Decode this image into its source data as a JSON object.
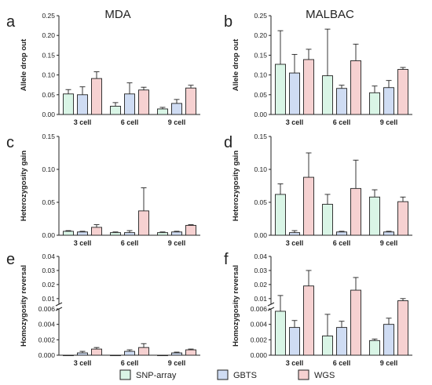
{
  "figure": {
    "legend": [
      {
        "name": "SNP-array",
        "fill": "#d9f5e6",
        "stroke": "#1f1f1f"
      },
      {
        "name": "GBTS",
        "fill": "#cfdcf3",
        "stroke": "#1f1f1f"
      },
      {
        "name": "WGS",
        "fill": "#f6d1d1",
        "stroke": "#1f1f1f"
      }
    ],
    "colors": {
      "axis": "#222222"
    }
  },
  "chart_data": [
    {
      "letter": "a",
      "title": "MDA",
      "type": "bar",
      "ylabel": "Allele drop out",
      "ylim": [
        0,
        0.25
      ],
      "yticks": [
        {
          "v": 0,
          "t": "0.00"
        },
        {
          "v": 0.05,
          "t": "0.05"
        },
        {
          "v": 0.1,
          "t": "0.10"
        },
        {
          "v": 0.15,
          "t": "0.15"
        },
        {
          "v": 0.2,
          "t": "0.20"
        },
        {
          "v": 0.25,
          "t": "0.25"
        }
      ],
      "categories": [
        "3 cell",
        "6 cell",
        "9 cell"
      ],
      "series": [
        {
          "name": "SNP-array",
          "fill": "#d9f5e6",
          "values": [
            0.052,
            0.021,
            0.014
          ],
          "err": [
            0.011,
            0.009,
            0.004
          ]
        },
        {
          "name": "GBTS",
          "fill": "#cfdcf3",
          "values": [
            0.05,
            0.052,
            0.028
          ],
          "err": [
            0.02,
            0.028,
            0.01
          ]
        },
        {
          "name": "WGS",
          "fill": "#f6d1d1",
          "values": [
            0.091,
            0.062,
            0.067
          ],
          "err": [
            0.017,
            0.007,
            0.007
          ]
        }
      ]
    },
    {
      "letter": "b",
      "title": "MALBAC",
      "type": "bar",
      "ylabel": "Allele drop out",
      "ylim": [
        0,
        0.25
      ],
      "yticks": [
        {
          "v": 0,
          "t": "0.00"
        },
        {
          "v": 0.05,
          "t": "0.05"
        },
        {
          "v": 0.1,
          "t": "0.10"
        },
        {
          "v": 0.15,
          "t": "0.15"
        },
        {
          "v": 0.2,
          "t": "0.20"
        },
        {
          "v": 0.25,
          "t": "0.25"
        }
      ],
      "categories": [
        "3 cell",
        "6 cell",
        "9 cell"
      ],
      "series": [
        {
          "name": "SNP-array",
          "fill": "#d9f5e6",
          "values": [
            0.127,
            0.098,
            0.055
          ],
          "err": [
            0.085,
            0.118,
            0.017
          ]
        },
        {
          "name": "GBTS",
          "fill": "#cfdcf3",
          "values": [
            0.105,
            0.066,
            0.068
          ],
          "err": [
            0.047,
            0.008,
            0.018
          ]
        },
        {
          "name": "WGS",
          "fill": "#f6d1d1",
          "values": [
            0.139,
            0.136,
            0.114
          ],
          "err": [
            0.026,
            0.042,
            0.005
          ]
        }
      ]
    },
    {
      "letter": "c",
      "title": "",
      "type": "bar",
      "ylabel": "Heterozygosity gain",
      "ylim": [
        0,
        0.15
      ],
      "yticks": [
        {
          "v": 0,
          "t": "0.00"
        },
        {
          "v": 0.05,
          "t": "0.05"
        },
        {
          "v": 0.1,
          "t": "0.10"
        },
        {
          "v": 0.15,
          "t": "0.15"
        }
      ],
      "categories": [
        "3 cell",
        "6 cell",
        "9 cell"
      ],
      "series": [
        {
          "name": "SNP-array",
          "fill": "#d9f5e6",
          "values": [
            0.006,
            0.004,
            0.004
          ],
          "err": [
            0.001,
            0.001,
            0.001
          ]
        },
        {
          "name": "GBTS",
          "fill": "#cfdcf3",
          "values": [
            0.005,
            0.004,
            0.005
          ],
          "err": [
            0.001,
            0.003,
            0.001
          ]
        },
        {
          "name": "WGS",
          "fill": "#f6d1d1",
          "values": [
            0.012,
            0.037,
            0.015
          ],
          "err": [
            0.004,
            0.035,
            0.001
          ]
        }
      ]
    },
    {
      "letter": "d",
      "title": "",
      "type": "bar",
      "ylabel": "Heterozygosity gain",
      "ylim": [
        0,
        0.15
      ],
      "yticks": [
        {
          "v": 0,
          "t": "0.00"
        },
        {
          "v": 0.05,
          "t": "0.05"
        },
        {
          "v": 0.1,
          "t": "0.10"
        },
        {
          "v": 0.15,
          "t": "0.15"
        }
      ],
      "categories": [
        "3 cell",
        "6 cell",
        "9 cell"
      ],
      "series": [
        {
          "name": "SNP-array",
          "fill": "#d9f5e6",
          "values": [
            0.062,
            0.047,
            0.058
          ],
          "err": [
            0.016,
            0.015,
            0.011
          ]
        },
        {
          "name": "GBTS",
          "fill": "#cfdcf3",
          "values": [
            0.004,
            0.005,
            0.005
          ],
          "err": [
            0.003,
            0.001,
            0.001
          ]
        },
        {
          "name": "WGS",
          "fill": "#f6d1d1",
          "values": [
            0.088,
            0.071,
            0.051
          ],
          "err": [
            0.037,
            0.043,
            0.007
          ]
        }
      ]
    },
    {
      "letter": "e",
      "title": "",
      "type": "bar",
      "ylabel": "Homozygosity reversal",
      "broken_axis": {
        "lower_range": [
          0,
          0.006
        ],
        "upper_range": [
          0.006,
          0.04
        ]
      },
      "yticks_lower": [
        {
          "v": 0,
          "t": "0.000"
        },
        {
          "v": 0.002,
          "t": "0.002"
        },
        {
          "v": 0.004,
          "t": "0.004"
        },
        {
          "v": 0.006,
          "t": "0.006"
        }
      ],
      "yticks_upper": [
        {
          "v": 0.01,
          "t": "0.01"
        },
        {
          "v": 0.02,
          "t": "0.02"
        },
        {
          "v": 0.03,
          "t": "0.03"
        },
        {
          "v": 0.04,
          "t": "0.04"
        }
      ],
      "categories": [
        "3 cell",
        "6 cell",
        "9 cell"
      ],
      "series": [
        {
          "name": "SNP-array",
          "fill": "#d9f5e6",
          "values": [
            0.0,
            0.0,
            0.0
          ],
          "err": [
            0,
            0,
            0
          ]
        },
        {
          "name": "GBTS",
          "fill": "#cfdcf3",
          "values": [
            0.0003,
            0.0005,
            0.0003
          ],
          "err": [
            0.0002,
            0.0002,
            0.0001
          ]
        },
        {
          "name": "WGS",
          "fill": "#f6d1d1",
          "values": [
            0.0008,
            0.001,
            0.0007
          ],
          "err": [
            0.0002,
            0.0005,
            0.0001
          ]
        }
      ]
    },
    {
      "letter": "f",
      "title": "",
      "type": "bar",
      "ylabel": "Homozygosity reversal",
      "broken_axis": {
        "lower_range": [
          0,
          0.006
        ],
        "upper_range": [
          0.006,
          0.04
        ]
      },
      "yticks_lower": [
        {
          "v": 0,
          "t": "0.000"
        },
        {
          "v": 0.002,
          "t": "0.002"
        },
        {
          "v": 0.004,
          "t": "0.004"
        },
        {
          "v": 0.006,
          "t": "0.006"
        }
      ],
      "yticks_upper": [
        {
          "v": 0.01,
          "t": "0.01"
        },
        {
          "v": 0.02,
          "t": "0.02"
        },
        {
          "v": 0.03,
          "t": "0.03"
        },
        {
          "v": 0.04,
          "t": "0.04"
        }
      ],
      "categories": [
        "3 cell",
        "6 cell",
        "9 cell"
      ],
      "series": [
        {
          "name": "SNP-array",
          "fill": "#d9f5e6",
          "values": [
            0.0057,
            0.0025,
            0.0019
          ],
          "err": [
            0.0065,
            0.0028,
            0.0002
          ]
        },
        {
          "name": "GBTS",
          "fill": "#cfdcf3",
          "values": [
            0.0036,
            0.0036,
            0.004
          ],
          "err": [
            0.0009,
            0.0008,
            0.0008
          ]
        },
        {
          "name": "WGS",
          "fill": "#f6d1d1",
          "values": [
            0.019,
            0.016,
            0.0085
          ],
          "err": [
            0.011,
            0.009,
            0.0015
          ]
        }
      ]
    }
  ]
}
